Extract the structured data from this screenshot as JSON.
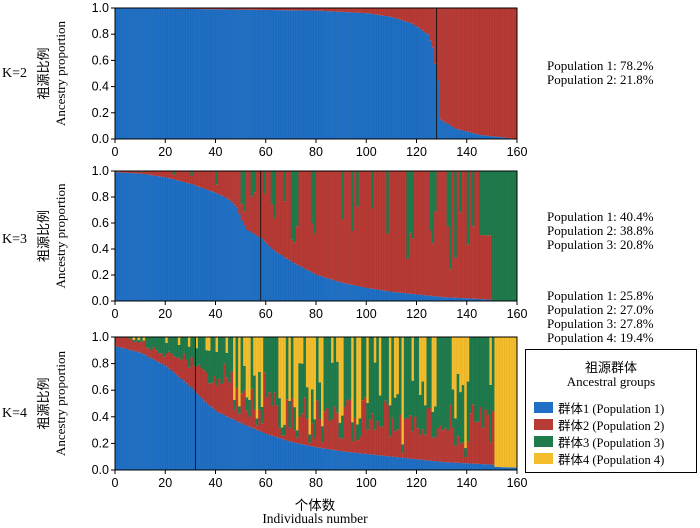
{
  "xaxis": {
    "zh": "个体数",
    "en": "Individuals number"
  },
  "yaxis": {
    "zh": "祖源比例",
    "en": "Ancestry proportion"
  },
  "legend": {
    "title_zh": "祖源群体",
    "title_en": "Ancestral groups",
    "items": [
      {
        "label": "群体1 (Population 1)",
        "color": "#1f6fc4"
      },
      {
        "label": "群体2 (Population 2)",
        "color": "#b83a35"
      },
      {
        "label": "群体3 (Population 3)",
        "color": "#1f7a4c"
      },
      {
        "label": "群体4 (Population 4)",
        "color": "#f4bd2c"
      }
    ]
  },
  "panels": [
    {
      "k_label": "K=2",
      "summary": [
        "Population 1: 78.2%",
        "Population 2: 21.8%"
      ]
    },
    {
      "k_label": "K=3",
      "summary": [
        "Population 1: 40.4%",
        "Population 2: 38.8%",
        "Population 3: 20.8%"
      ]
    },
    {
      "k_label": "K=4",
      "summary": [
        "Population 1: 25.8%",
        "Population 2: 27.0%",
        "Population 3: 27.8%",
        "Population 4: 19.4%"
      ]
    }
  ],
  "chart_data": [
    {
      "type": "bar",
      "subtype": "stacked-admixture",
      "title": "K=2",
      "xlabel": "个体数 Individuals number",
      "ylabel": "祖源比例 Ancestry proportion",
      "xlim": [
        0,
        160
      ],
      "ylim": [
        0,
        1
      ],
      "xticks": [
        0,
        20,
        40,
        60,
        80,
        100,
        120,
        140,
        160
      ],
      "yticks": [
        "0.0",
        "0.2",
        "0.4",
        "0.6",
        "0.8",
        "1.0"
      ],
      "n_individuals": 160,
      "series_names": [
        "Population 1",
        "Population 2"
      ],
      "series_colors": [
        "#1f6fc4",
        "#b83a35"
      ],
      "population1_profile": [
        [
          0,
          1.0
        ],
        [
          40,
          0.99
        ],
        [
          80,
          0.98
        ],
        [
          100,
          0.96
        ],
        [
          110,
          0.93
        ],
        [
          118,
          0.88
        ],
        [
          124,
          0.8
        ],
        [
          126,
          0.7
        ],
        [
          128,
          0.45
        ],
        [
          129,
          0.15
        ],
        [
          135,
          0.08
        ],
        [
          145,
          0.03
        ],
        [
          155,
          0.01
        ],
        [
          159,
          0.0
        ]
      ],
      "separator_at": 128
    },
    {
      "type": "bar",
      "subtype": "stacked-admixture",
      "title": "K=3",
      "xlabel": "个体数 Individuals number",
      "ylabel": "祖源比例 Ancestry proportion",
      "xlim": [
        0,
        160
      ],
      "ylim": [
        0,
        1
      ],
      "xticks": [
        0,
        20,
        40,
        60,
        80,
        100,
        120,
        140,
        160
      ],
      "yticks": [
        "0.0",
        "0.2",
        "0.4",
        "0.6",
        "0.8",
        "1.0"
      ],
      "n_individuals": 160,
      "series_names": [
        "Population 1",
        "Population 2",
        "Population 3"
      ],
      "series_colors": [
        "#1f6fc4",
        "#b83a35",
        "#1f7a4c"
      ],
      "population1_profile": [
        [
          0,
          0.99
        ],
        [
          10,
          0.98
        ],
        [
          20,
          0.95
        ],
        [
          30,
          0.9
        ],
        [
          40,
          0.83
        ],
        [
          45,
          0.78
        ],
        [
          48,
          0.72
        ],
        [
          50,
          0.62
        ],
        [
          52,
          0.55
        ],
        [
          58,
          0.48
        ],
        [
          62,
          0.4
        ],
        [
          70,
          0.3
        ],
        [
          80,
          0.2
        ],
        [
          90,
          0.14
        ],
        [
          100,
          0.1
        ],
        [
          110,
          0.07
        ],
        [
          120,
          0.05
        ],
        [
          130,
          0.03
        ],
        [
          140,
          0.02
        ],
        [
          159,
          0.0
        ]
      ],
      "population3_pure_from": 150,
      "separator_at": 58
    },
    {
      "type": "bar",
      "subtype": "stacked-admixture",
      "title": "K=4",
      "xlabel": "个体数 Individuals number",
      "ylabel": "祖源比例 Ancestry proportion",
      "xlim": [
        0,
        160
      ],
      "ylim": [
        0,
        1
      ],
      "xticks": [
        0,
        20,
        40,
        60,
        80,
        100,
        120,
        140,
        160
      ],
      "yticks": [
        "0.0",
        "0.2",
        "0.4",
        "0.6",
        "0.8",
        "1.0"
      ],
      "n_individuals": 160,
      "series_names": [
        "Population 1",
        "Population 2",
        "Population 3",
        "Population 4"
      ],
      "series_colors": [
        "#1f6fc4",
        "#b83a35",
        "#1f7a4c",
        "#f4bd2c"
      ],
      "population1_profile": [
        [
          0,
          0.93
        ],
        [
          10,
          0.88
        ],
        [
          20,
          0.78
        ],
        [
          30,
          0.62
        ],
        [
          35,
          0.52
        ],
        [
          40,
          0.44
        ],
        [
          50,
          0.35
        ],
        [
          60,
          0.27
        ],
        [
          70,
          0.21
        ],
        [
          80,
          0.17
        ],
        [
          90,
          0.14
        ],
        [
          100,
          0.12
        ],
        [
          110,
          0.1
        ],
        [
          120,
          0.08
        ],
        [
          130,
          0.06
        ],
        [
          140,
          0.05
        ],
        [
          150,
          0.04
        ],
        [
          159,
          0.03
        ]
      ],
      "population4_pure_from": 151,
      "separator_at": 32
    }
  ]
}
